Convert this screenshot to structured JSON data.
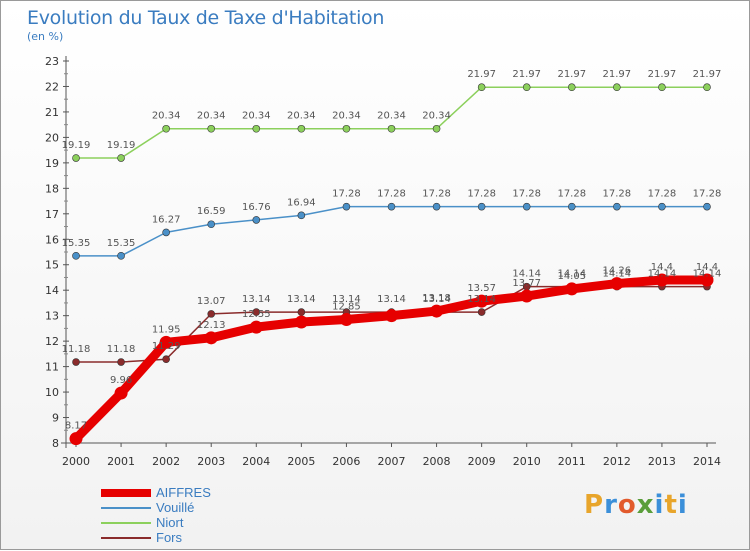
{
  "title": "Evolution du Taux de Taxe d'Habitation",
  "subtitle": "(en %)",
  "logo": {
    "text": "Proxiti",
    "colors": [
      "#e8a52b",
      "#3b8fd9",
      "#e25a2c",
      "#5a9e3a",
      "#3b8fd9",
      "#e8a52b",
      "#3b8fd9"
    ]
  },
  "chart_data": {
    "type": "line",
    "x": [
      2000,
      2001,
      2002,
      2003,
      2004,
      2005,
      2006,
      2007,
      2008,
      2009,
      2010,
      2011,
      2012,
      2013,
      2014
    ],
    "ylim": [
      8,
      23
    ],
    "yticks": [
      8,
      9,
      10,
      11,
      12,
      13,
      14,
      15,
      16,
      17,
      18,
      19,
      20,
      21,
      22,
      23
    ],
    "grid": false,
    "legend_position": "bottom-left",
    "series": [
      {
        "name": "AIFFRES",
        "color": "#e60000",
        "values": [
          8.17,
          9.96,
          11.95,
          12.13,
          12.55,
          12.75,
          12.85,
          13.0,
          13.18,
          13.57,
          13.77,
          14.05,
          14.26,
          14.4,
          14.4
        ],
        "labels": [
          "8.17",
          "9.96",
          "11.95",
          "12.13",
          "12.55",
          "",
          "12.85",
          "",
          "13.18",
          "13.57",
          "13.77",
          "14.05",
          "14.26",
          "14.4",
          "14.4"
        ]
      },
      {
        "name": "Vouillé",
        "color": "#4a90c8",
        "values": [
          15.35,
          15.35,
          16.27,
          16.59,
          16.76,
          16.94,
          17.28,
          17.28,
          17.28,
          17.28,
          17.28,
          17.28,
          17.28,
          17.28,
          17.28
        ],
        "labels": [
          "15.35",
          "15.35",
          "16.27",
          "16.59",
          "16.76",
          "16.94",
          "17.28",
          "17.28",
          "17.28",
          "17.28",
          "17.28",
          "17.28",
          "17.28",
          "17.28",
          "17.28"
        ]
      },
      {
        "name": "Niort",
        "color": "#8cd05c",
        "values": [
          19.19,
          19.19,
          20.34,
          20.34,
          20.34,
          20.34,
          20.34,
          20.34,
          20.34,
          21.97,
          21.97,
          21.97,
          21.97,
          21.97,
          21.97
        ],
        "labels": [
          "19.19",
          "19.19",
          "20.34",
          "20.34",
          "20.34",
          "20.34",
          "20.34",
          "20.34",
          "20.34",
          "21.97",
          "21.97",
          "21.97",
          "21.97",
          "21.97",
          "21.97"
        ]
      },
      {
        "name": "Fors",
        "color": "#8a2b2b",
        "values": [
          11.18,
          11.18,
          11.29,
          13.07,
          13.14,
          13.14,
          13.14,
          13.14,
          13.14,
          13.14,
          14.14,
          14.14,
          14.14,
          14.14,
          14.14
        ],
        "labels": [
          "11.18",
          "11.18",
          "11.29",
          "13.07",
          "13.14",
          "13.14",
          "13.14",
          "13.14",
          "13.14",
          "13.14",
          "14.14",
          "14.14",
          "14.14",
          "14.14",
          "14.14"
        ]
      }
    ]
  }
}
